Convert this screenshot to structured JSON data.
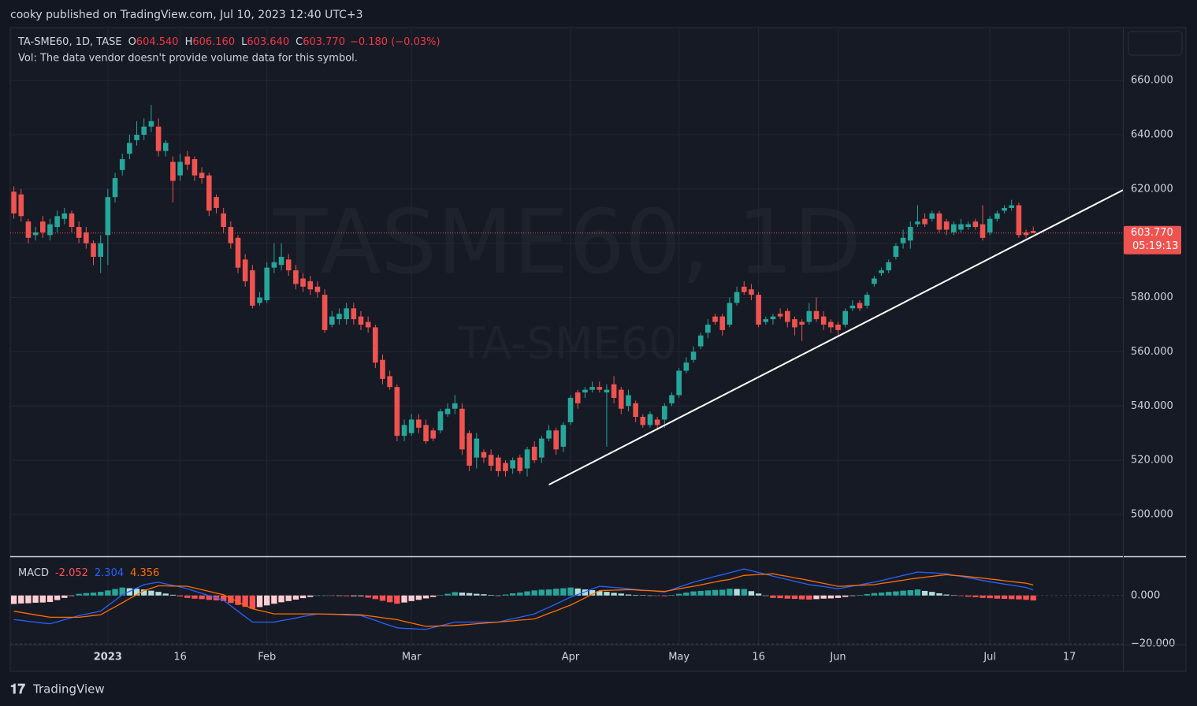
{
  "chart_data": {
    "type": "candlestick",
    "publisher_line": "cooky published on TradingView.com, Jul 10, 2023 12:40 UTC+3",
    "symbol_line": "TA-SME60, 1D, TASE",
    "ohlc_legend": [
      {
        "key": "O",
        "value": "604.540"
      },
      {
        "key": "H",
        "value": "606.160"
      },
      {
        "key": "L",
        "value": "603.640"
      },
      {
        "key": "C",
        "value": "603.770"
      }
    ],
    "change": "−0.180 (−0.03%)",
    "volume_note": "Vol: The data vendor doesn't provide volume data for this symbol.",
    "watermark": [
      "TASME60, 1D",
      "TA-SME60"
    ],
    "last_price_label": "603.770",
    "countdown": "05:19:13",
    "branding": "TradingView",
    "up_color": "#26a69a",
    "down_color": "#ef5350",
    "grid": true,
    "xlim": [
      -0.5,
      153.4
    ],
    "ylim": [
      484.6,
      679.5
    ],
    "yticks": [
      {
        "value": 500,
        "label": "500.000"
      },
      {
        "value": 520,
        "label": "520.000"
      },
      {
        "value": 540,
        "label": "540.000"
      },
      {
        "value": 560,
        "label": "560.000"
      },
      {
        "value": 580,
        "label": "580.000"
      },
      {
        "value": 600,
        "label": "600.000"
      },
      {
        "value": 620,
        "label": "620.000"
      },
      {
        "value": 640,
        "label": "640.000"
      },
      {
        "value": 660,
        "label": "660.000"
      }
    ],
    "categories": [
      null,
      null,
      null,
      null,
      null,
      null,
      null,
      null,
      null,
      null,
      null,
      null,
      null,
      "2023",
      null,
      null,
      null,
      null,
      null,
      null,
      null,
      null,
      null,
      "16",
      null,
      null,
      null,
      null,
      null,
      null,
      null,
      null,
      null,
      null,
      null,
      "Feb",
      null,
      null,
      null,
      null,
      null,
      null,
      null,
      null,
      null,
      null,
      null,
      null,
      null,
      null,
      null,
      null,
      null,
      null,
      null,
      "Mar",
      null,
      null,
      null,
      null,
      null,
      null,
      null,
      null,
      null,
      null,
      null,
      null,
      null,
      null,
      null,
      null,
      null,
      null,
      null,
      null,
      null,
      "Apr",
      null,
      null,
      null,
      null,
      null,
      null,
      null,
      null,
      null,
      null,
      null,
      null,
      null,
      null,
      "May",
      null,
      null,
      null,
      null,
      null,
      null,
      null,
      null,
      null,
      null,
      "16",
      null,
      null,
      null,
      null,
      null,
      null,
      null,
      null,
      null,
      null,
      "Jun",
      null,
      null,
      null,
      null,
      null,
      null,
      null,
      null,
      null,
      null,
      null,
      null,
      null,
      null,
      null,
      null,
      null,
      null,
      null,
      null,
      "Jul",
      null,
      null,
      null,
      null,
      null,
      null,
      null,
      null,
      null,
      null,
      "17"
    ],
    "open": [
      619,
      618,
      608,
      603,
      608,
      603,
      606,
      609,
      611,
      606,
      604,
      600,
      595,
      603,
      617,
      627,
      633,
      638,
      640,
      643,
      643,
      634,
      630,
      625,
      632,
      631,
      626,
      625,
      617,
      611,
      606,
      602,
      594,
      590,
      578,
      579,
      591,
      592,
      594,
      590,
      587,
      586,
      584,
      581,
      570,
      572,
      572,
      576,
      573,
      571,
      569,
      557,
      551,
      547,
      529,
      530,
      535,
      533,
      531,
      531,
      537,
      539,
      539,
      530,
      521,
      523,
      522,
      521,
      519,
      517,
      521,
      517,
      525,
      521,
      528,
      531,
      525,
      534,
      545,
      545,
      546,
      547,
      545,
      548,
      546,
      540,
      541,
      536,
      533,
      535,
      535,
      541,
      544,
      553,
      557,
      562,
      567,
      573,
      573,
      570,
      578,
      584,
      583,
      581,
      571,
      572,
      574,
      575,
      572,
      571,
      571,
      575,
      573,
      571,
      570,
      570,
      576,
      578,
      577,
      585,
      589,
      590,
      595,
      600,
      601,
      607,
      609,
      609,
      611,
      608,
      604,
      605,
      606,
      608,
      607,
      604,
      609,
      612,
      613,
      614,
      604,
      604.54,
      null,
      null,
      null,
      null,
      null
    ],
    "high": [
      621,
      620,
      609,
      606,
      610,
      609,
      612,
      613,
      612,
      608,
      606,
      601,
      603,
      620,
      626,
      633,
      640,
      645,
      646,
      651,
      646,
      638,
      632,
      633,
      634,
      632,
      628,
      626,
      618,
      613,
      608,
      603,
      596,
      592,
      582,
      593,
      600,
      600,
      596,
      592,
      589,
      588,
      586,
      583,
      575,
      576,
      578,
      578,
      575,
      573,
      570,
      559,
      553,
      548,
      535,
      537,
      537,
      535,
      532,
      539,
      541,
      544,
      541,
      531,
      530,
      524,
      524,
      522,
      520,
      521,
      522,
      525,
      527,
      529,
      533,
      532,
      534,
      544,
      546,
      547,
      549,
      549,
      548,
      551,
      547,
      546,
      542,
      537,
      538,
      536,
      541,
      545,
      554,
      558,
      562,
      567,
      572,
      574,
      574,
      580,
      584,
      586,
      585,
      582,
      573,
      574,
      576,
      576,
      573,
      572,
      578,
      580,
      575,
      572,
      571,
      576,
      579,
      579,
      582,
      588,
      591,
      594,
      600,
      605,
      608,
      614,
      611,
      612,
      612,
      609,
      608,
      609,
      608,
      609,
      614,
      610,
      612,
      614,
      616,
      615,
      605,
      606.16,
      null,
      null,
      null,
      null,
      null
    ],
    "low": [
      609,
      608,
      600,
      601,
      602,
      601,
      604,
      607,
      604,
      600,
      598,
      592,
      589,
      592,
      615,
      625,
      631,
      636,
      638,
      641,
      632,
      632,
      615,
      623,
      627,
      623,
      622,
      610,
      611,
      604,
      598,
      589,
      584,
      576,
      577,
      578,
      589,
      590,
      588,
      583,
      582,
      581,
      580,
      567,
      569,
      570,
      570,
      570,
      568,
      567,
      554,
      548,
      546,
      527,
      527,
      529,
      530,
      526,
      527,
      530,
      536,
      537,
      522,
      516,
      517,
      519,
      516,
      514,
      514,
      515,
      515,
      514,
      519,
      519,
      527,
      522,
      523,
      533,
      539,
      543,
      545,
      545,
      525,
      541,
      537,
      538,
      534,
      532,
      532,
      531,
      532,
      540,
      543,
      552,
      556,
      561,
      565,
      570,
      566,
      569,
      577,
      581,
      579,
      569,
      570,
      570,
      572,
      569,
      566,
      564,
      570,
      571,
      568,
      567,
      566,
      569,
      575,
      575,
      576,
      584,
      588,
      589,
      594,
      598,
      598,
      606,
      606,
      608,
      604,
      603,
      603,
      604,
      605,
      605,
      601,
      603,
      608,
      611,
      612,
      602,
      602,
      603.64,
      null,
      null,
      null,
      null,
      null
    ],
    "close": [
      611,
      610,
      602,
      604,
      604,
      607,
      610,
      611,
      606,
      602,
      600,
      595,
      600,
      617,
      624,
      631,
      637,
      640,
      643,
      645,
      634,
      637,
      623,
      630,
      629,
      625,
      624,
      612,
      613,
      606,
      600,
      591,
      586,
      577,
      580,
      591,
      593,
      595,
      590,
      585,
      584,
      583,
      582,
      568,
      573,
      574,
      576,
      572,
      570,
      569,
      556,
      550,
      547,
      529,
      533,
      535,
      532,
      527,
      528,
      538,
      539,
      541,
      524,
      518,
      528,
      521,
      518,
      516,
      516,
      520,
      516,
      524,
      520,
      528,
      531,
      524,
      533,
      543,
      541,
      546,
      547,
      546,
      546,
      543,
      539,
      544,
      536,
      533,
      537,
      533,
      540,
      544,
      553,
      556,
      560,
      566,
      570,
      571,
      568,
      578,
      582,
      582,
      581,
      570,
      572,
      573,
      573,
      571,
      569,
      570,
      575,
      572,
      570,
      569,
      568,
      575,
      577,
      576,
      581,
      587,
      590,
      593,
      599,
      602,
      606,
      608,
      607,
      611,
      605,
      605,
      607,
      607,
      607,
      606,
      602,
      609,
      611,
      613,
      614,
      603,
      603,
      603.77,
      null,
      null,
      null,
      null,
      null
    ],
    "trendline": {
      "color": "#ffffff",
      "x": [
        74,
        153.4
      ],
      "y": [
        511,
        619.6
      ]
    },
    "macd": {
      "name": "MACD",
      "ylim": [
        -20.3,
        15.9
      ],
      "yticks": [
        {
          "value": 0,
          "label": "0.000"
        },
        {
          "value": -20,
          "label": "−20.000"
        }
      ],
      "macd_color": "#2962ff",
      "signal_color": "#ff6d00",
      "hist_colors": [
        "#26a69a",
        "#b2dfdb",
        "#ffcdd2",
        "#ff5252"
      ],
      "histogram": [
        -3.5,
        -3.3,
        -3.2,
        -3,
        -2.9,
        -2.7,
        -1.9,
        -1,
        -0.2,
        0.7,
        1,
        1.2,
        1.5,
        2.1,
        2.7,
        3.3,
        3,
        2.8,
        2.5,
        2,
        1.5,
        0.8,
        0.3,
        -0.4,
        -1,
        -1.3,
        -1.5,
        -1.8,
        -2,
        -2.3,
        -3.1,
        -3.9,
        -4.7,
        -5.5,
        -4.8,
        -4.1,
        -3.4,
        -2.8,
        -2.3,
        -1.7,
        -1.1,
        -0.6,
        0,
        0,
        -0.1,
        -0.1,
        -0.3,
        -0.3,
        -0.3,
        -0.9,
        -1.5,
        -2.2,
        -2.8,
        -3.4,
        -2.9,
        -2.3,
        -1.8,
        -1.2,
        -0.6,
        0.1,
        0.7,
        1.4,
        1.2,
        1,
        0.7,
        0.5,
        0.2,
        0,
        0.4,
        0.9,
        1.2,
        1.7,
        2.1,
        2.4,
        2.5,
        2.8,
        3,
        3.3,
        2.9,
        2.5,
        2.2,
        1.8,
        1.5,
        1.1,
        0.8,
        0.4,
        0.2,
        0.1,
        0,
        -0.1,
        -0.3,
        0.2,
        0.7,
        1.2,
        1.7,
        1.9,
        2.1,
        2.3,
        2.4,
        2.8,
        2.7,
        2.7,
        1.8,
        0.8,
        0,
        -1,
        -1.1,
        -1.3,
        -1.4,
        -1.6,
        -1.7,
        -1.5,
        -1.3,
        -1.2,
        -1,
        -0.6,
        -0.2,
        0.2,
        0.6,
        1,
        1.2,
        1.5,
        1.7,
        2,
        2.2,
        2.5,
        1.9,
        1.5,
        0.9,
        0.4,
        0.1,
        -0.2,
        -0.5,
        -0.7,
        -1,
        -1.1,
        -1.3,
        -1.4,
        -1.5,
        -1.6,
        -1.8,
        -2.052,
        null,
        null,
        null,
        null,
        null
      ],
      "macd": [
        -10,
        -10.3,
        -10.7,
        -11,
        -11.4,
        -11.7,
        -10.9,
        -10,
        -9.2,
        -8.3,
        -7.7,
        -7.1,
        -6.5,
        -4.2,
        -2,
        0.3,
        1.7,
        3.1,
        4.5,
        5,
        5.5,
        4.8,
        4.2,
        3.5,
        2.8,
        1.8,
        0.9,
        -0.1,
        -1,
        -2,
        -4.3,
        -6.5,
        -8.8,
        -11,
        -11,
        -11,
        -11,
        -10.4,
        -9.9,
        -9.3,
        -8.7,
        -8.2,
        -7.6,
        -7.7,
        -7.8,
        -7.9,
        -8.1,
        -8.2,
        -8.3,
        -9.3,
        -10.3,
        -11.4,
        -12.4,
        -13.4,
        -13.6,
        -13.7,
        -13.9,
        -14,
        -13.3,
        -12.5,
        -11.8,
        -11,
        -11,
        -11,
        -11,
        -11,
        -11,
        -11,
        -10.3,
        -9.6,
        -9,
        -8.3,
        -7.6,
        -6.2,
        -4.9,
        -3.5,
        -2.1,
        -0.7,
        0.4,
        1.5,
        2.7,
        3.8,
        3.6,
        3.3,
        3.1,
        2.8,
        2.5,
        2.2,
        2,
        1.7,
        1.4,
        2.4,
        3.5,
        4.5,
        5.5,
        6.3,
        7.1,
        7.9,
        8.6,
        9.4,
        10.2,
        11,
        10.3,
        9.5,
        8.8,
        8,
        7.3,
        6.6,
        5.9,
        5.2,
        4.5,
        4.1,
        3.7,
        3.2,
        2.8,
        3.3,
        3.9,
        4.4,
        5,
        5.5,
        6.2,
        6.9,
        7.6,
        8.3,
        9,
        9.7,
        9.5,
        9.4,
        9.2,
        9,
        8.4,
        7.9,
        7.3,
        6.8,
        6.2,
        5.7,
        5.2,
        4.7,
        4.3,
        3.8,
        3.3,
        2.304,
        null,
        null,
        null,
        null,
        null
      ],
      "signal": [
        -6.5,
        -7,
        -7.5,
        -8,
        -8.5,
        -9,
        -9,
        -9,
        -9,
        -9,
        -8.7,
        -8.3,
        -8,
        -6.3,
        -4.7,
        -3,
        -1.3,
        0.3,
        2,
        3,
        4,
        4,
        3.9,
        3.9,
        3.8,
        3.1,
        2.4,
        1.7,
        1,
        0.3,
        -1.2,
        -2.6,
        -4.1,
        -5.5,
        -6.2,
        -6.9,
        -7.6,
        -7.6,
        -7.6,
        -7.6,
        -7.6,
        -7.6,
        -7.6,
        -7.7,
        -7.7,
        -7.8,
        -7.8,
        -7.9,
        -8,
        -8.4,
        -8.8,
        -9.2,
        -9.6,
        -10,
        -10.7,
        -11.4,
        -12.1,
        -12.8,
        -12.7,
        -12.6,
        -12.5,
        -12.4,
        -12.2,
        -12,
        -11.7,
        -11.5,
        -11.2,
        -11,
        -10.7,
        -10.5,
        -10.2,
        -10,
        -9.7,
        -8.6,
        -7.4,
        -6.3,
        -5.1,
        -4,
        -2.5,
        -1,
        0.5,
        2,
        2.1,
        2.2,
        2.3,
        2.4,
        2.3,
        2.1,
        2,
        1.8,
        1.7,
        2.2,
        2.8,
        3.3,
        3.8,
        4.4,
        5,
        5.6,
        6.2,
        6.6,
        7.5,
        8.3,
        8.5,
        8.7,
        8.8,
        9,
        8.4,
        7.9,
        7.3,
        6.8,
        6.2,
        5.6,
        5,
        4.4,
        3.8,
        3.9,
        4.1,
        4.2,
        4.4,
        4.5,
        5,
        5.4,
        5.9,
        6.3,
        6.8,
        7.2,
        7.6,
        7.9,
        8.3,
        8.6,
        8.3,
        8.1,
        7.8,
        7.5,
        7.2,
        6.8,
        6.5,
        6.1,
        5.8,
        5.4,
        5.1,
        4.356,
        null,
        null,
        null,
        null,
        null
      ]
    }
  }
}
